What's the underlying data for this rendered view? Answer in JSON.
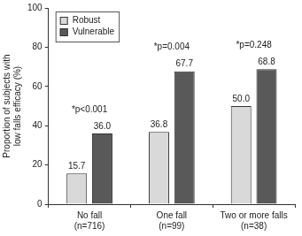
{
  "chart_data": {
    "type": "bar",
    "y_label": [
      "Proportion of subjects with",
      "low falls efficacy (%)"
    ],
    "categories": [
      [
        "No fall",
        "(n=716)"
      ],
      [
        "One fall",
        "(n=99)"
      ],
      [
        "Two or more falls",
        "(n=38)"
      ]
    ],
    "series": [
      {
        "name": "Robust",
        "color": "#d9d9d9",
        "values": [
          15.7,
          36.8,
          50.0
        ],
        "value_labels": [
          "15.7",
          "36.8",
          "50.0"
        ]
      },
      {
        "name": "Vulnerable",
        "color": "#595959",
        "values": [
          36.0,
          67.7,
          68.8
        ],
        "value_labels": [
          "36.0",
          "67.7",
          "68.8"
        ]
      }
    ],
    "annotations": [
      "*p<0.001",
      "*p=0.004",
      "*p=0.248"
    ],
    "ylim": [
      0,
      100
    ],
    "yticks": [
      0,
      20,
      40,
      60,
      80,
      100
    ],
    "grid": false,
    "legend": "upper left",
    "data_labels": true
  }
}
